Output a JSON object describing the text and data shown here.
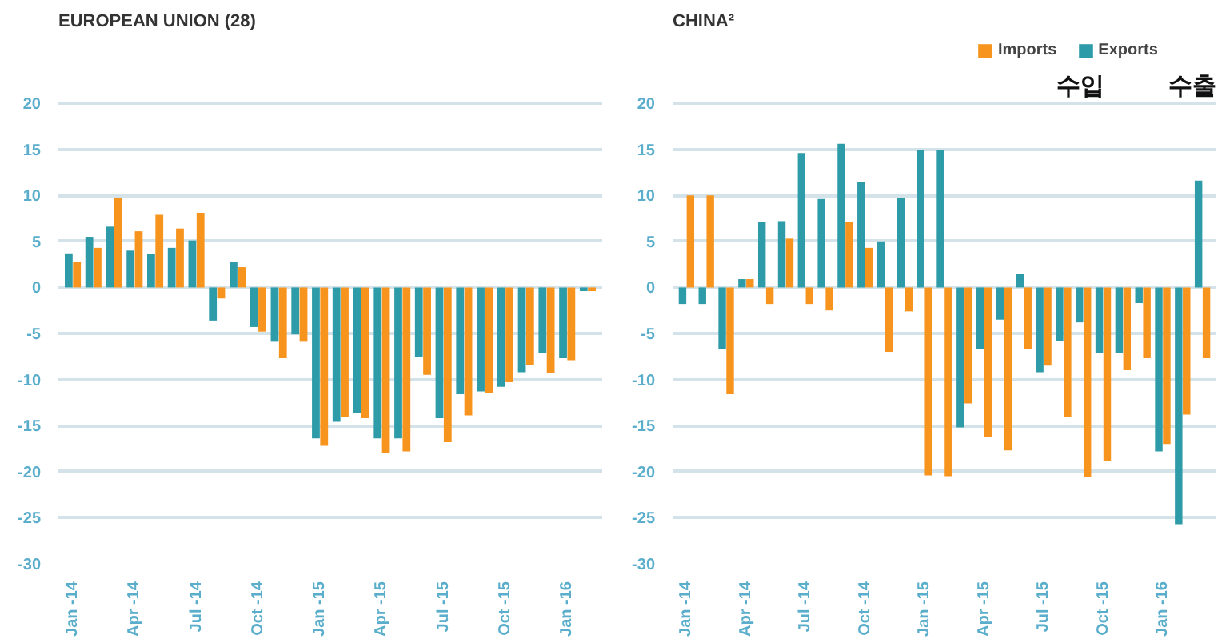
{
  "chart_data": [
    {
      "type": "bar",
      "title": "EUROPEAN UNION (28)",
      "categories": [
        "Jan -14",
        null,
        null,
        "Apr -14",
        null,
        null,
        "Jul -14",
        null,
        null,
        "Oct -14",
        null,
        null,
        "Jan -15",
        null,
        null,
        "Apr -15",
        null,
        null,
        "Jul -15",
        null,
        null,
        "Oct -15",
        null,
        null,
        "Jan -16",
        null
      ],
      "series": [
        {
          "color": "#f7941d",
          "values": [
            2.8,
            4.3,
            9.7,
            6.1,
            7.9,
            6.4,
            8.1,
            -1.2,
            2.2,
            -4.8,
            -7.7,
            -5.9,
            -17.2,
            -14.1,
            -14.2,
            -18.0,
            -17.8,
            -9.5,
            -16.8,
            -13.9,
            -11.5,
            -10.3,
            -8.4,
            -9.3,
            -7.9,
            -0.4
          ]
        },
        {
          "color": "#2e9ba8",
          "values": [
            3.7,
            5.5,
            6.6,
            4.0,
            3.6,
            4.3,
            5.1,
            -3.6,
            2.8,
            -4.3,
            -5.9,
            -5.1,
            -16.4,
            -14.6,
            -13.6,
            -16.4,
            -16.4,
            -7.6,
            -14.2,
            -11.6,
            -11.3,
            -10.8,
            -9.2,
            -7.1,
            -7.7,
            -0.4
          ]
        }
      ],
      "ylim": [
        -30,
        20
      ],
      "yticks": [
        -30,
        -25,
        -20,
        -15,
        -10,
        -5,
        0,
        5,
        10,
        15,
        20
      ],
      "grid": "y"
    },
    {
      "type": "bar",
      "title": "CHINA²",
      "categories": [
        "Jan -14",
        null,
        null,
        "Apr -14",
        null,
        null,
        "Jul -14",
        null,
        null,
        "Oct -14",
        null,
        null,
        "Jan -15",
        null,
        null,
        "Apr -15",
        null,
        null,
        "Jul -15",
        null,
        null,
        "Oct -15",
        null,
        null,
        "Jan -16",
        null,
        null
      ],
      "series": [
        {
          "name": "Imports",
          "color": "#f7941d",
          "values": [
            10.0,
            10.0,
            -11.6,
            0.9,
            -1.8,
            5.3,
            -1.8,
            -2.5,
            7.1,
            4.3,
            -7.0,
            -2.6,
            -20.4,
            -20.5,
            -12.6,
            -16.2,
            -17.7,
            -6.7,
            -8.5,
            -14.1,
            -20.6,
            -18.8,
            -9.0,
            -7.7,
            -17.0,
            -13.8,
            -7.7
          ]
        },
        {
          "name": "Exports",
          "color": "#2e9ba8",
          "values": [
            -1.8,
            -1.8,
            -6.7,
            0.9,
            7.1,
            7.2,
            14.6,
            9.6,
            15.6,
            11.5,
            5.0,
            9.7,
            14.9,
            14.9,
            -15.2,
            -6.7,
            -3.5,
            1.5,
            -9.2,
            -5.8,
            -3.8,
            -7.1,
            -7.1,
            -1.7,
            -17.8,
            -25.7,
            11.6
          ]
        }
      ],
      "ylim": [
        -30,
        20
      ],
      "yticks": [
        -30,
        -25,
        -20,
        -15,
        -10,
        -5,
        0,
        5,
        10,
        15,
        20
      ],
      "grid": "y",
      "legend": "top right",
      "annotations": [
        "수입",
        "수출"
      ]
    }
  ]
}
